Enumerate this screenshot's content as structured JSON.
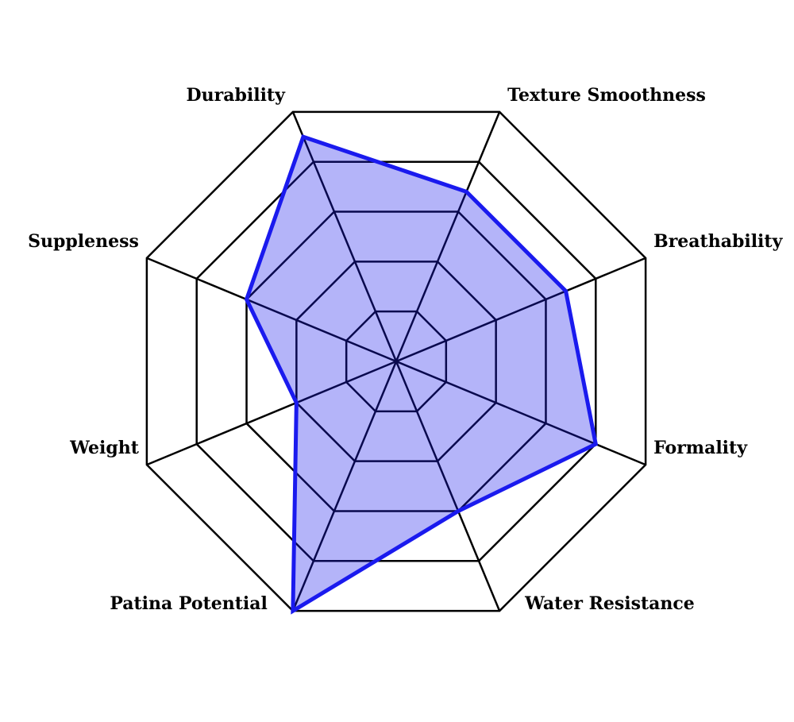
{
  "chart_data": {
    "type": "radar",
    "categories": [
      "Durability",
      "Texture Smoothness",
      "Breathability",
      "Formality",
      "Water Resistance",
      "Patina Potential",
      "Weight",
      "Suppleness"
    ],
    "series": [
      {
        "color": "#1a1aee",
        "values": [
          4.5,
          3.4,
          3.4,
          4,
          3,
          5,
          2,
          3
        ]
      }
    ],
    "rlim": [
      0,
      5
    ],
    "rticks": [
      1,
      2,
      3,
      4,
      5
    ],
    "grid": true
  }
}
